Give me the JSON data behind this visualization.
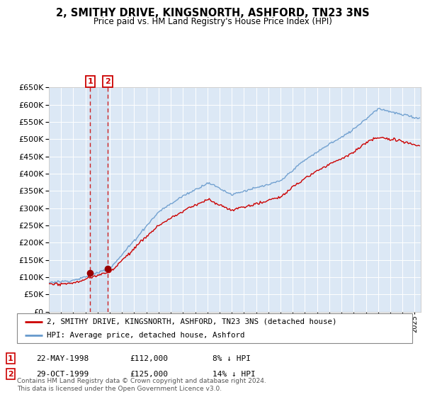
{
  "title": "2, SMITHY DRIVE, KINGSNORTH, ASHFORD, TN23 3NS",
  "subtitle": "Price paid vs. HM Land Registry's House Price Index (HPI)",
  "red_label": "2, SMITHY DRIVE, KINGSNORTH, ASHFORD, TN23 3NS (detached house)",
  "blue_label": "HPI: Average price, detached house, Ashford",
  "footer": "Contains HM Land Registry data © Crown copyright and database right 2024.\nThis data is licensed under the Open Government Licence v3.0.",
  "sales": [
    {
      "num": 1,
      "date": "22-MAY-1998",
      "price": 112000,
      "pct": "8%",
      "year": 1998.38
    },
    {
      "num": 2,
      "date": "29-OCT-1999",
      "price": 125000,
      "pct": "14%",
      "year": 1999.83
    }
  ],
  "ylim": [
    0,
    650000
  ],
  "yticks": [
    0,
    50000,
    100000,
    150000,
    200000,
    250000,
    300000,
    350000,
    400000,
    450000,
    500000,
    550000,
    600000,
    650000
  ],
  "plot_bg": "#dce8f5",
  "grid_color": "#ffffff",
  "red_color": "#cc0000",
  "blue_color": "#6699cc",
  "sale_marker_color": "#990000",
  "vline_color": "#cc2222"
}
